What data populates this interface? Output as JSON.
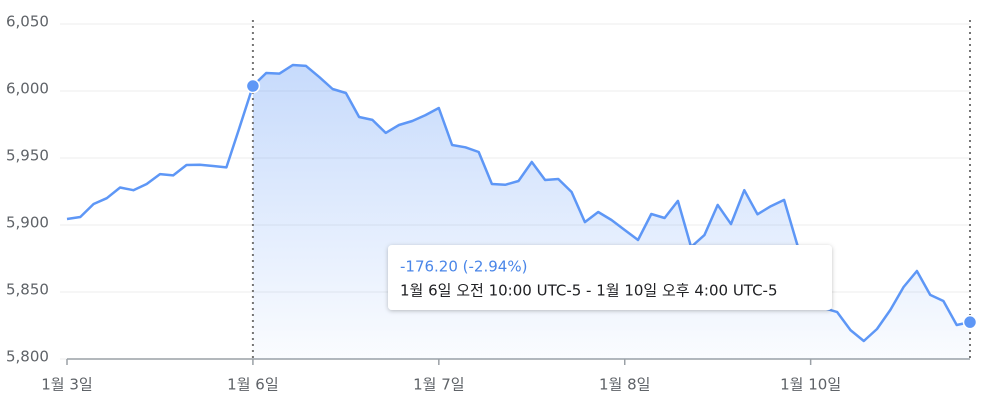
{
  "chart_data": {
    "type": "line",
    "categories": [
      "1월 3일",
      null,
      null,
      null,
      null,
      null,
      null,
      null,
      null,
      null,
      null,
      null,
      null,
      null,
      "1월 6일",
      null,
      null,
      null,
      null,
      null,
      null,
      null,
      null,
      null,
      null,
      null,
      null,
      null,
      "1월 7일",
      null,
      null,
      null,
      null,
      null,
      null,
      null,
      null,
      null,
      null,
      null,
      null,
      null,
      "1월 8일",
      null,
      null,
      null,
      null,
      null,
      null,
      null,
      null,
      null,
      null,
      null,
      null,
      null,
      "1월 10일",
      null,
      null,
      null,
      null,
      null,
      null,
      null,
      null,
      null,
      null,
      null,
      null
    ],
    "values": [
      5904.5,
      5906,
      5915.7,
      5920,
      5928,
      5926,
      5930.6,
      5938,
      5937,
      5944.8,
      5945,
      5944,
      5943,
      5973,
      6003.7,
      6013.4,
      6013,
      6019.4,
      6018.7,
      6010.4,
      6001.5,
      5998.5,
      5980.6,
      5978.4,
      5968.7,
      5974.6,
      5977.6,
      5982,
      5987.3,
      5959.7,
      5958,
      5954.5,
      5930.6,
      5930,
      5932.8,
      5947,
      5933.6,
      5934.3,
      5924.6,
      5902.2,
      5909.7,
      5903.7,
      5896.3,
      5888.8,
      5908.2,
      5905.2,
      5918,
      5883.6,
      5892.5,
      5915,
      5900.7,
      5926,
      5908,
      5914,
      5918.7,
      5885,
      5844,
      5838,
      5835,
      5821.6,
      5813.4,
      5822.4,
      5836.6,
      5853.7,
      5865.7,
      5847.8,
      5843.3,
      5825.4,
      5827.5
    ],
    "color": "#5e97f6",
    "ylim": [
      5800,
      6050
    ],
    "yticks": [
      {
        "value": 5800,
        "label": "5,800"
      },
      {
        "value": 5850,
        "label": "5,850"
      },
      {
        "value": 5900,
        "label": "5,900"
      },
      {
        "value": 5950,
        "label": "5,950"
      },
      {
        "value": 6000,
        "label": "6,000"
      },
      {
        "value": 6050,
        "label": "6,050"
      }
    ],
    "grid": true,
    "selection": {
      "from": 14,
      "to": 68
    },
    "tooltip": {
      "change": "-176.20 (-2.94%)",
      "range": "1월 6일 오전 10:00 UTC-5 - 1월 10일 오후 4:00 UTC-5"
    }
  }
}
